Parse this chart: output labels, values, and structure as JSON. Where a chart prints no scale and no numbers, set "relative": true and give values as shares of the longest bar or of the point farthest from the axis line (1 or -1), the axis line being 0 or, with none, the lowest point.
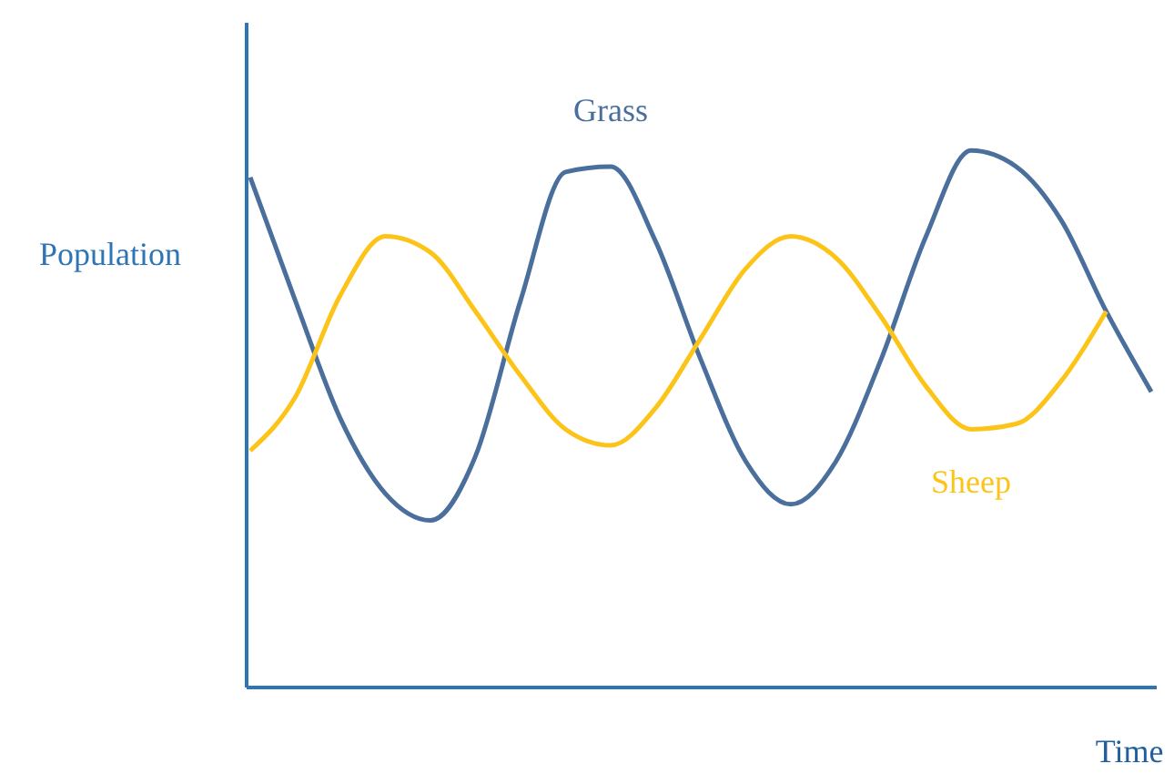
{
  "chart_data": {
    "type": "line",
    "relative": true,
    "xlabel": "Time",
    "ylabel": "Population",
    "tick_labels": false,
    "grid": false,
    "categories": [
      null,
      null,
      null,
      null,
      null,
      null,
      null,
      null,
      null,
      null,
      null,
      null,
      null,
      null,
      null,
      null,
      null,
      null,
      null,
      null,
      null
    ],
    "series": [
      {
        "name": "Grass",
        "color": "#4a6f9c",
        "values": [
          0.95,
          0.72,
          0.5,
          0.36,
          0.31,
          0.43,
          0.72,
          0.96,
          0.97,
          0.83,
          0.61,
          0.42,
          0.34,
          0.42,
          0.61,
          0.84,
          1.0,
          0.97,
          0.87,
          0.7,
          0.55
        ]
      },
      {
        "name": "Sheep",
        "color": "#fcc419",
        "values": [
          0.44,
          0.54,
          0.73,
          0.84,
          0.81,
          0.7,
          0.58,
          0.48,
          0.45,
          0.52,
          0.65,
          0.78,
          0.84,
          0.8,
          0.69,
          0.56,
          0.48,
          0.49,
          0.57,
          0.7,
          null
        ]
      }
    ]
  }
}
